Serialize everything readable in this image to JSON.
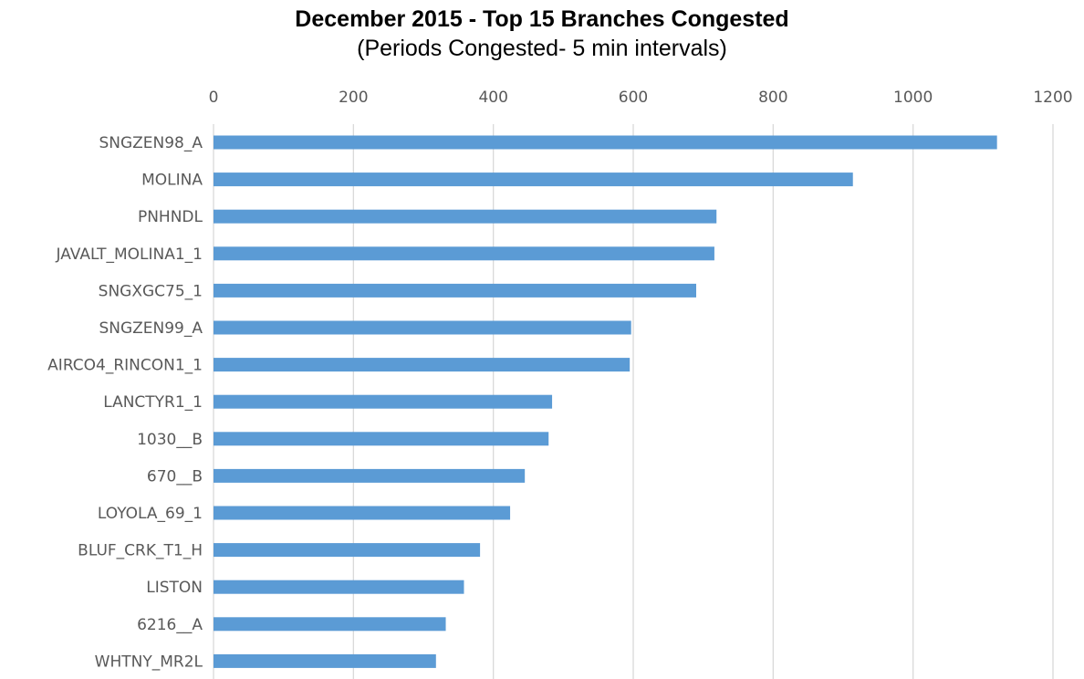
{
  "chart_data": {
    "type": "bar",
    "orientation": "horizontal",
    "title": "December 2015 - Top 15 Branches Congested",
    "subtitle": "(Periods Congested- 5 min intervals)",
    "xlabel": "",
    "ylabel": "",
    "xlim": [
      0,
      1200
    ],
    "x_ticks": [
      0,
      200,
      400,
      600,
      800,
      1000,
      1200
    ],
    "x_tick_labels": [
      "0",
      "200",
      "400",
      "600",
      "800",
      "1000",
      "1200"
    ],
    "x_axis_position": "top",
    "grid": true,
    "legend": "none",
    "bar_color": "#5B9BD5",
    "grid_color": "#D9D9D9",
    "label_color": "#595959",
    "categories": [
      "SNGZEN98_A",
      "MOLINA",
      "PNHNDL",
      "JAVALT_MOLINA1_1",
      "SNGXGC75_1",
      "SNGZEN99_A",
      "AIRCO4_RINCON1_1",
      "LANCTYR1_1",
      "1030__B",
      "670__B",
      "LOYOLA_69_1",
      "BLUF_CRK_T1_H",
      "LISTON",
      "6216__A",
      "WHTNY_MR2L"
    ],
    "values": [
      1120,
      914,
      719,
      716,
      690,
      597,
      595,
      484,
      479,
      445,
      424,
      381,
      358,
      332,
      318
    ]
  }
}
